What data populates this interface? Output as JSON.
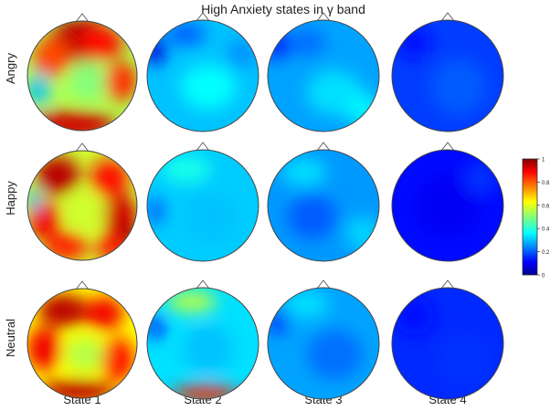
{
  "chart_data": {
    "type": "heatmap",
    "title": "High Anxiety states in γ band",
    "rows": [
      "Angry",
      "Happy",
      "Neutral"
    ],
    "columns": [
      "State 1",
      "State 2",
      "State 3",
      "State 4"
    ],
    "colorscale": {
      "name": "jet",
      "range": [
        0,
        1
      ],
      "tick_labels": [
        "1",
        "0.8",
        "0.6",
        "0.4",
        "0.2",
        "0"
      ],
      "stops": [
        "#00008f",
        "#0000ff",
        "#00ffff",
        "#ffff00",
        "#ff0000",
        "#800000"
      ]
    },
    "maps": [
      {
        "row": "Angry",
        "column": "State 1",
        "mean_level": 0.55
      },
      {
        "row": "Angry",
        "column": "State 2",
        "mean_level": 0.3
      },
      {
        "row": "Angry",
        "column": "State 3",
        "mean_level": 0.27
      },
      {
        "row": "Angry",
        "column": "State 4",
        "mean_level": 0.17
      },
      {
        "row": "Happy",
        "column": "State 1",
        "mean_level": 0.58
      },
      {
        "row": "Happy",
        "column": "State 2",
        "mean_level": 0.31
      },
      {
        "row": "Happy",
        "column": "State 3",
        "mean_level": 0.26
      },
      {
        "row": "Happy",
        "column": "State 4",
        "mean_level": 0.12
      },
      {
        "row": "Neutral",
        "column": "State 1",
        "mean_level": 0.63
      },
      {
        "row": "Neutral",
        "column": "State 2",
        "mean_level": 0.33
      },
      {
        "row": "Neutral",
        "column": "State 3",
        "mean_level": 0.27
      },
      {
        "row": "Neutral",
        "column": "State 4",
        "mean_level": 0.15
      }
    ]
  }
}
